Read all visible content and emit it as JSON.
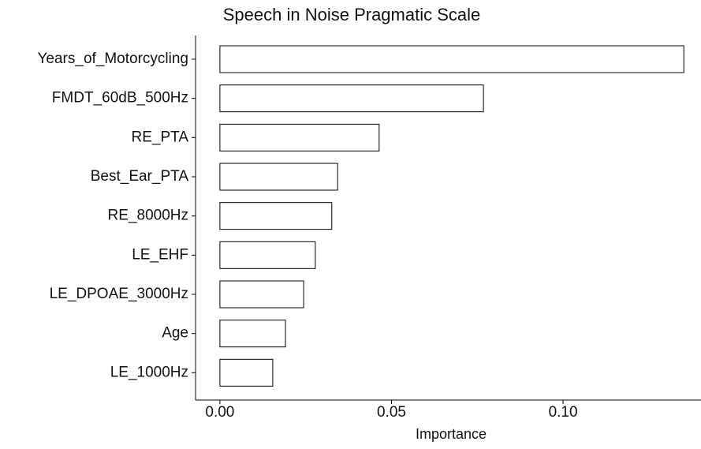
{
  "chart_data": {
    "type": "bar",
    "orientation": "horizontal",
    "title": "Speech in Noise Pragmatic Scale",
    "x_label": "Importance",
    "categories": [
      "Years_of_Motorcycling",
      "FMDT_60dB_500Hz",
      "RE_PTA",
      "Best_Ear_PTA",
      "RE_8000Hz",
      "LE_EHF",
      "LE_DPOAE_3000Hz",
      "Age",
      "LE_1000Hz"
    ],
    "values": [
      0.1352,
      0.0768,
      0.0464,
      0.0343,
      0.0326,
      0.0278,
      0.0244,
      0.0191,
      0.0154
    ],
    "color": "#ffffff",
    "edge_color": "#000000",
    "xlim": [
      -0.0071,
      0.1402
    ],
    "xticks": [
      {
        "value": 0,
        "label": "0.00"
      },
      {
        "value": 0.05,
        "label": "0.05"
      },
      {
        "value": 0.1,
        "label": "0.10"
      }
    ],
    "grid": false
  }
}
